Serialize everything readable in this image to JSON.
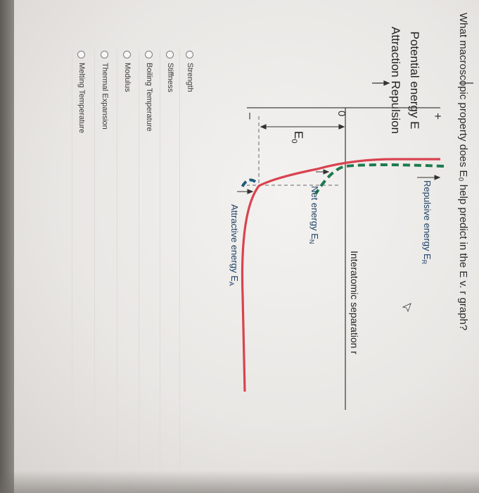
{
  "question": "What macroscopic property does E₀ help predict in the E v. r graph?",
  "graph": {
    "y_axis_label_line1": "Potential energy E",
    "y_axis_label_line2": "Attraction Repulsion",
    "plus_sign": "+",
    "minus_sign": "–",
    "zero_label": "0",
    "x_axis_label": "Interatomic separation r",
    "repulsive_label": "Repulsive energy E",
    "repulsive_sub": "R",
    "net_label": "Net energy E",
    "net_sub": "N",
    "attractive_label": "Attractive energy E",
    "attractive_sub": "A",
    "e0_label": "E",
    "e0_sub": "0",
    "colors": {
      "net": "#d9424f",
      "repulsive": "#1d7a4f",
      "attractive": "#1f5a7a",
      "text_blue": "#1c3f66"
    }
  },
  "options": [
    {
      "label": "Strength"
    },
    {
      "label": "Stiffness"
    },
    {
      "label": "Boiling Temperature"
    },
    {
      "label": "Modulus"
    },
    {
      "label": "Thermal Expansion"
    },
    {
      "label": "Melting Temperature"
    }
  ]
}
